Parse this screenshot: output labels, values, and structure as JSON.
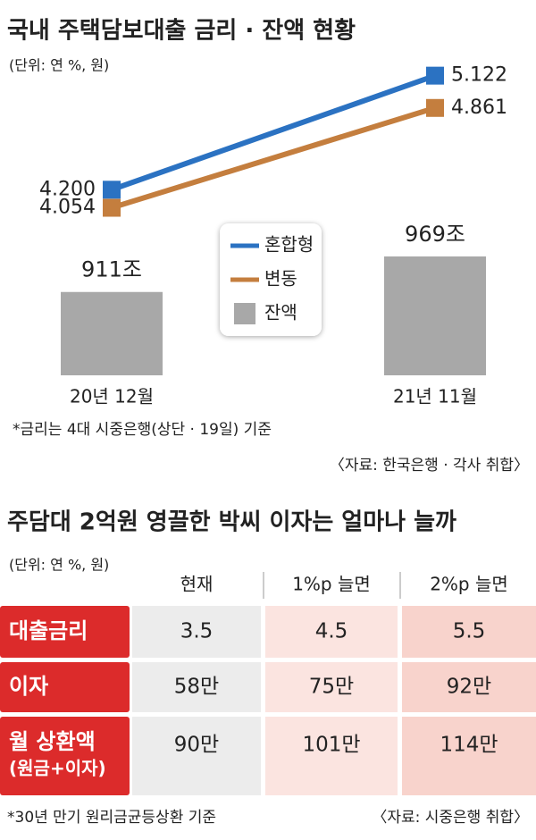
{
  "chart_data": {
    "type": "bar_line",
    "title": "국내 주택담보대출 금리 · 잔액 현황",
    "subtitle": "(단위: 연 %, 원)",
    "categories": [
      "20년 12월",
      "21년 11월"
    ],
    "ylim": [
      2.7,
      5.3
    ],
    "y2lim": [
      775,
      1300
    ],
    "series": [
      {
        "name": "혼합형",
        "type": "line",
        "color": "#2b72c2",
        "values": [
          4.2,
          5.122
        ],
        "value_labels": [
          "4.200",
          "5.122"
        ]
      },
      {
        "name": "변동",
        "type": "line",
        "color": "#c47e3e",
        "values": [
          4.054,
          4.861
        ],
        "value_labels": [
          "4.054",
          "4.861"
        ]
      },
      {
        "name": "잔액",
        "type": "bar",
        "axis": "y2",
        "color": "#a8a8a8",
        "values": [
          911,
          969
        ],
        "value_labels": [
          "911조",
          "969조"
        ]
      }
    ],
    "note": "*금리는 4대 시중은행(상단 · 19일) 기준",
    "source": "〈자료: 한국은행 · 각사 취합〉"
  },
  "table": {
    "title": "주담대 2억원 영끌한 박씨 이자는 얼마나 늘까",
    "unit": "(단위: 연 %, 원)",
    "columns": [
      "현재",
      "1%p 늘면",
      "2%p 늘면"
    ],
    "rows": [
      {
        "label": [
          "대출금리"
        ],
        "cells": [
          "3.5",
          "4.5",
          "5.5"
        ]
      },
      {
        "label": [
          "이자"
        ],
        "cells": [
          "58만",
          "75만",
          "92만"
        ]
      },
      {
        "label": [
          "월 상환액",
          "(원금+이자)"
        ],
        "cells": [
          "90만",
          "101만",
          "114만"
        ]
      }
    ],
    "note": "*30년 만기 원리금균등상환 기준",
    "source": "〈자료: 시중은행 취합〉"
  }
}
